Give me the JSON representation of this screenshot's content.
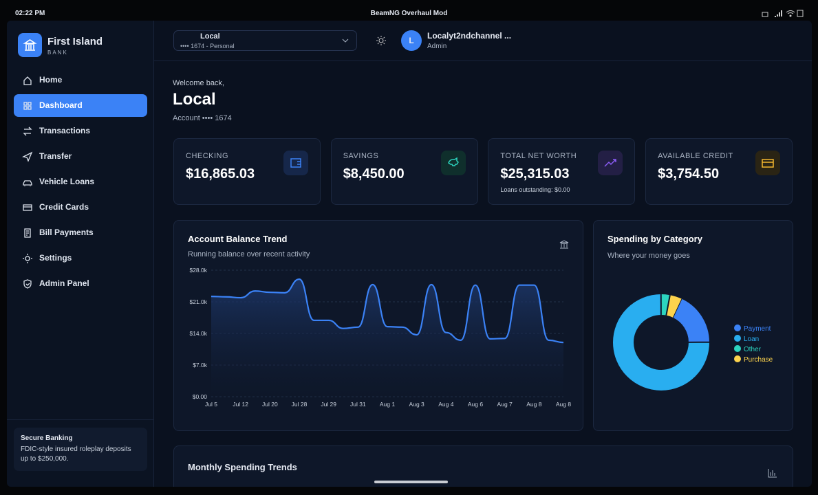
{
  "status_bar": {
    "time": "02:22 PM",
    "title": "BeamNG Overhaul Mod"
  },
  "sidebar": {
    "brand_name": "First Island",
    "brand_sub": "BANK",
    "nav": [
      "Home",
      "Dashboard",
      "Transactions",
      "Transfer",
      "Vehicle Loans",
      "Credit Cards",
      "Bill Payments",
      "Settings",
      "Admin Panel"
    ],
    "footer": {
      "title": "Secure Banking",
      "text": "FDIC-style insured roleplay deposits up to $250,000."
    }
  },
  "header": {
    "account_name": "Local",
    "account_detail": "•••• 1674 - Personal",
    "user_initial": "L",
    "user_name": "Localyt2ndchannel ...",
    "user_role": "Admin"
  },
  "welcome": {
    "greeting": "Welcome back,",
    "name": "Local",
    "account": "Account •••• 1674"
  },
  "cards": [
    {
      "label": "CHECKING",
      "value": "$16,865.03"
    },
    {
      "label": "SAVINGS",
      "value": "$8,450.00"
    },
    {
      "label": "TOTAL NET WORTH",
      "value": "$25,315.03",
      "note": "Loans outstanding: $0.00"
    },
    {
      "label": "AVAILABLE CREDIT",
      "value": "$3,754.50"
    }
  ],
  "balance_chart": {
    "type": "area",
    "title": "Account Balance Trend",
    "subtitle": "Running balance over recent activity",
    "color": "#3b82f6",
    "categories": [
      "Jul 5",
      null,
      "Jul 12",
      null,
      "Jul 20",
      null,
      "Jul 28",
      null,
      "Jul 29",
      null,
      "Jul 31",
      null,
      "Aug 1",
      null,
      "Aug 3",
      null,
      "Aug 4",
      null,
      "Aug 6",
      null,
      "Aug 7",
      null,
      "Aug 8",
      null,
      "Aug 8"
    ],
    "values": [
      22200,
      22100,
      21900,
      23400,
      23100,
      23000,
      26000,
      16900,
      16900,
      15100,
      15400,
      24800,
      15500,
      15400,
      13700,
      24800,
      14200,
      12500,
      24700,
      12800,
      12900,
      24700,
      24700,
      12500,
      12000
    ],
    "ylim": [
      0,
      28000
    ],
    "yticks": [
      {
        "value": 0,
        "label": "$0.00"
      },
      {
        "value": 7000,
        "label": "$7.0k"
      },
      {
        "value": 14000,
        "label": "$14.0k"
      },
      {
        "value": 21000,
        "label": "$21.0k"
      },
      {
        "value": 28000,
        "label": "$28.0k"
      }
    ],
    "grid": true
  },
  "spending_chart": {
    "type": "donut",
    "title": "Spending by Category",
    "subtitle": "Where your money goes",
    "categories": [
      "Payment",
      "Loan",
      "Other",
      "Purchase"
    ],
    "values": [
      18,
      75,
      3,
      4
    ],
    "colors": [
      "#3b82f6",
      "#29aef0",
      "#2dd4bf",
      "#fcd34d"
    ]
  },
  "monthly": {
    "title": "Monthly Spending Trends"
  }
}
